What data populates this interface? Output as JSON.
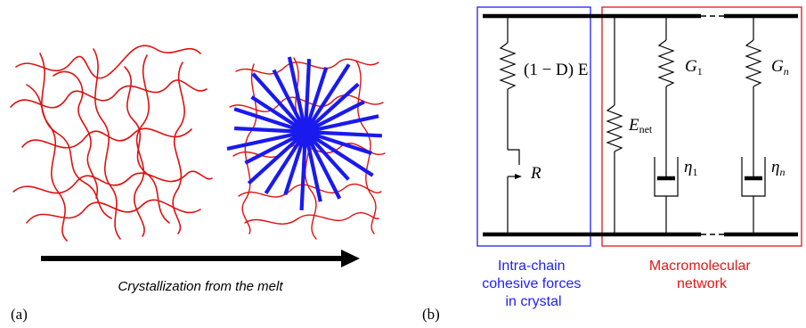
{
  "panel_a": {
    "label": "(a)",
    "caption": "Crystallization from the melt",
    "colors": {
      "chains": "#dd1111",
      "lamellae": "#1a1aee",
      "arrow": "#000000"
    }
  },
  "panel_b": {
    "label": "(b)",
    "spring_label": "(1 − D) E",
    "slider_label": "R",
    "enet_main": "E",
    "enet_sub": "net",
    "g1_main": "G",
    "g1_sub": "1",
    "gn_main": "G",
    "gn_sub": "n",
    "eta1_main": "η",
    "eta1_sub": "1",
    "etan_main": "η",
    "etan_sub": "n",
    "blue_box_caption": [
      "Intra-chain",
      "cohesive forces",
      "in crystal"
    ],
    "red_box_caption": [
      "Macromolecular",
      "network"
    ],
    "colors": {
      "blue_box": "#2020ff",
      "red_box": "#e01818",
      "lines": "#000000"
    }
  }
}
